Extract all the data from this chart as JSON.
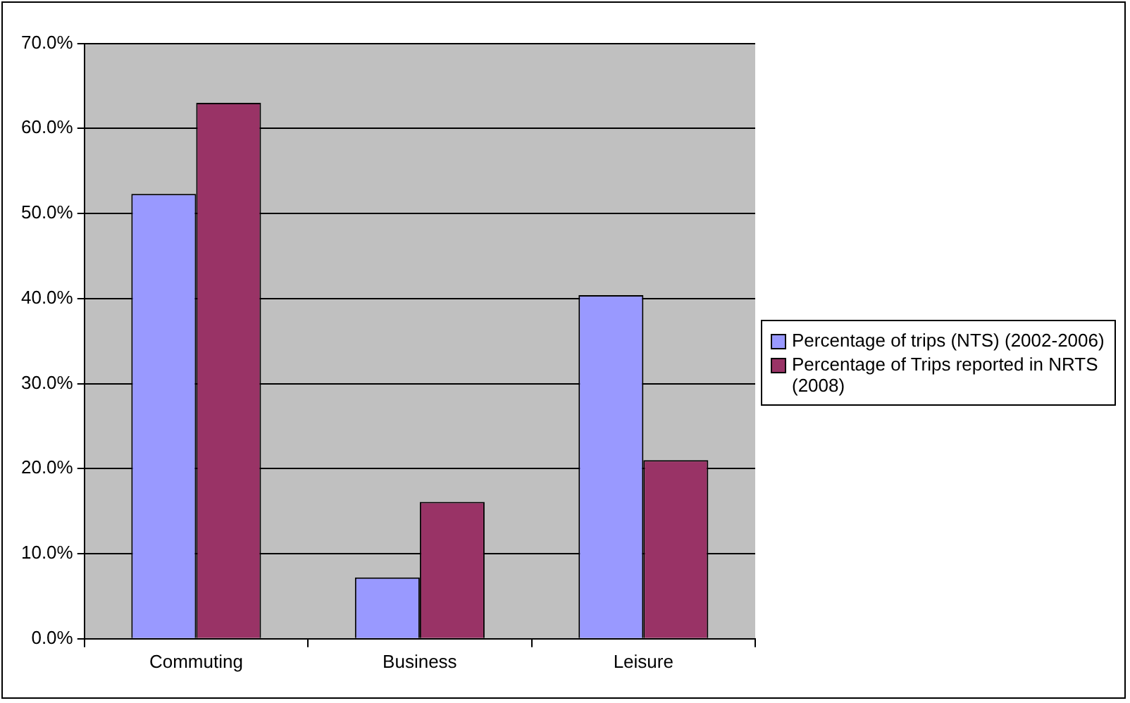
{
  "chart_data": {
    "type": "bar",
    "categories": [
      "Commuting",
      "Business",
      "Leisure"
    ],
    "series": [
      {
        "name": "Percentage of trips (NTS) (2002-2006)",
        "color": "#9999ff",
        "values": [
          52.3,
          7.2,
          40.4
        ]
      },
      {
        "name": "Percentage of Trips reported in NRTS (2008)",
        "color": "#993366",
        "values": [
          63.0,
          16.1,
          21.0
        ]
      }
    ],
    "ylim": [
      0,
      70
    ],
    "yticks": [
      {
        "value": 0,
        "label": "0.0%"
      },
      {
        "value": 10,
        "label": "10.0%"
      },
      {
        "value": 20,
        "label": "20.0%"
      },
      {
        "value": 30,
        "label": "30.0%"
      },
      {
        "value": 40,
        "label": "40.0%"
      },
      {
        "value": 50,
        "label": "50.0%"
      },
      {
        "value": 60,
        "label": "60.0%"
      },
      {
        "value": 70,
        "label": "70.0%"
      }
    ],
    "grid": "y",
    "legend": "right"
  }
}
